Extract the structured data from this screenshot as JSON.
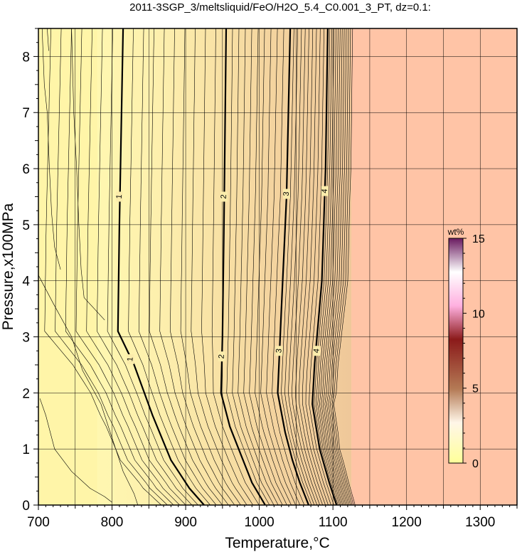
{
  "chart_data": {
    "type": "heatmap",
    "title": "2011-3SGP_3/meltsliquid/FeO/H2O_5.4_C0.001_3_PT, dz=0.1:",
    "xlabel": "Temperature,°C",
    "ylabel": "Pressure,x100MPa",
    "xlim": [
      700,
      1350
    ],
    "ylim": [
      0,
      8.5
    ],
    "x_ticks": [
      "700",
      "800",
      "900",
      "1000",
      "1100",
      "1200",
      "1300"
    ],
    "y_ticks": [
      "0",
      "1",
      "2",
      "3",
      "4",
      "5",
      "6",
      "7",
      "8"
    ],
    "grid": true,
    "major_contours": [
      {
        "label": "1",
        "level": 1,
        "points": [
          [
            815,
            8.5
          ],
          [
            810,
            5.0
          ],
          [
            808,
            3.1
          ],
          [
            830,
            2.5
          ],
          [
            855,
            1.6
          ],
          [
            880,
            0.8
          ],
          [
            905,
            0.3
          ],
          [
            925,
            0
          ]
        ]
      },
      {
        "label": "2",
        "level": 2,
        "points": [
          [
            955,
            8.5
          ],
          [
            952,
            5.0
          ],
          [
            950,
            3.0
          ],
          [
            948,
            2.0
          ],
          [
            960,
            1.4
          ],
          [
            975,
            0.9
          ],
          [
            990,
            0.4
          ],
          [
            1008,
            0
          ]
        ]
      },
      {
        "label": "3",
        "level": 3,
        "points": [
          [
            1042,
            8.5
          ],
          [
            1037,
            5.5
          ],
          [
            1030,
            3.5
          ],
          [
            1025,
            2.0
          ],
          [
            1035,
            1.3
          ],
          [
            1045,
            0.8
          ],
          [
            1055,
            0.4
          ],
          [
            1067,
            0
          ]
        ]
      },
      {
        "label": "4",
        "level": 4,
        "points": [
          [
            1093,
            8.5
          ],
          [
            1090,
            6.0
          ],
          [
            1085,
            4.0
          ],
          [
            1075,
            2.5
          ],
          [
            1072,
            1.8
          ],
          [
            1082,
            1.0
          ],
          [
            1095,
            0.4
          ],
          [
            1105,
            0
          ]
        ]
      }
    ],
    "contour_labels": [
      {
        "text": "1",
        "x": 810,
        "y": 5.5
      },
      {
        "text": "1",
        "x": 825,
        "y": 2.6
      },
      {
        "text": "2",
        "x": 952,
        "y": 5.5
      },
      {
        "text": "2",
        "x": 949,
        "y": 2.65
      },
      {
        "text": "3",
        "x": 1037,
        "y": 5.55
      },
      {
        "text": "3",
        "x": 1027,
        "y": 2.75
      },
      {
        "text": "4",
        "x": 1089,
        "y": 5.6
      },
      {
        "text": "4",
        "x": 1078,
        "y": 2.75
      }
    ],
    "colorbar": {
      "label": "wt%",
      "min": 0,
      "max": 15,
      "ticks": [
        "0",
        "5",
        "10",
        "15"
      ],
      "colors": [
        "#ffff99",
        "#ffffff",
        "#c08060",
        "#8b1a1a",
        "#ffb6e6",
        "#ffffff",
        "#7a1f66"
      ]
    },
    "field_colors": {
      "low": "#fff5a8",
      "mid": "#f5d9a0",
      "high": "#ffc4a6"
    },
    "high_region_start_T": 1125
  }
}
